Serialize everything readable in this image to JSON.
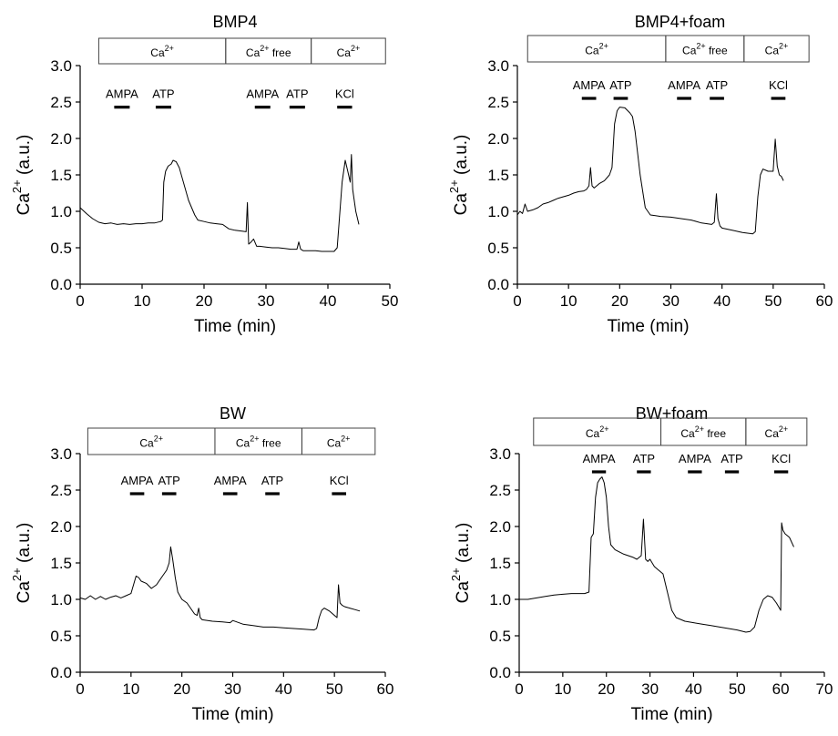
{
  "chart_data": [
    {
      "type": "line",
      "title": "BMP4",
      "xlabel": "Time (min)",
      "ylabel_main": "Ca",
      "ylabel_sup": "2+",
      "ylabel_tail": "(a.u.)",
      "xlim": [
        0,
        50
      ],
      "ylim": [
        0,
        3
      ],
      "xticks": [
        "0",
        "10",
        "20",
        "30",
        "40",
        "50"
      ],
      "yticks": [
        "0.0",
        "0.5",
        "1.0",
        "1.5",
        "2.0",
        "2.5",
        "3.0"
      ],
      "conditions": [
        {
          "main": "Ca",
          "sup": "2+",
          "tail": "",
          "x_start": 3,
          "x_end": 23.5
        },
        {
          "main": "Ca",
          "sup": "2+",
          "tail": " free",
          "x_start": 23.5,
          "x_end": 37.3
        },
        {
          "main": "Ca",
          "sup": "2+",
          "tail": "",
          "x_start": 37.3,
          "x_end": 49.3
        }
      ],
      "drugs": [
        {
          "label": "AMPA",
          "x_start": 5.5,
          "x_end": 8
        },
        {
          "label": "ATP",
          "x_start": 12.2,
          "x_end": 14.7
        },
        {
          "label": "AMPA",
          "x_start": 28.2,
          "x_end": 30.7
        },
        {
          "label": "ATP",
          "x_start": 33.8,
          "x_end": 36.3
        },
        {
          "label": "KCl",
          "x_start": 41.5,
          "x_end": 43.9
        }
      ],
      "drug_level": 2.43,
      "series": [
        {
          "name": "BMP4",
          "x": [
            0,
            1,
            2,
            3,
            4,
            5,
            6,
            7,
            8,
            9,
            10,
            11,
            12,
            13,
            13.3,
            13.5,
            13.8,
            14.2,
            14.7,
            15,
            15.5,
            16,
            16.5,
            17,
            17.5,
            18,
            18.5,
            19,
            20,
            21,
            22,
            23,
            24,
            25,
            26,
            26.8,
            27,
            27.2,
            27.5,
            28,
            28.5,
            29,
            30,
            31,
            32,
            33,
            34,
            35,
            35.3,
            35.6,
            36,
            37,
            38,
            39,
            40,
            41,
            41.5,
            41.9,
            42.3,
            42.8,
            43.2,
            43.6,
            43.8,
            44,
            44.5,
            45
          ],
          "values": [
            1.05,
            0.97,
            0.9,
            0.85,
            0.83,
            0.84,
            0.82,
            0.83,
            0.82,
            0.83,
            0.83,
            0.84,
            0.84,
            0.86,
            0.88,
            1.4,
            1.55,
            1.62,
            1.65,
            1.7,
            1.68,
            1.6,
            1.45,
            1.3,
            1.15,
            1.05,
            0.95,
            0.88,
            0.86,
            0.84,
            0.83,
            0.82,
            0.76,
            0.74,
            0.73,
            0.72,
            1.12,
            0.55,
            0.57,
            0.62,
            0.52,
            0.52,
            0.51,
            0.5,
            0.5,
            0.49,
            0.48,
            0.48,
            0.58,
            0.48,
            0.46,
            0.46,
            0.46,
            0.45,
            0.45,
            0.45,
            0.5,
            0.95,
            1.4,
            1.7,
            1.55,
            1.4,
            1.78,
            1.3,
            1.0,
            0.82
          ]
        }
      ]
    },
    {
      "type": "line",
      "title": "BMP4+foam",
      "xlabel": "Time (min)",
      "ylabel_main": "Ca",
      "ylabel_sup": "2+",
      "ylabel_tail": "(a.u.)",
      "xlim": [
        0,
        60
      ],
      "ylim": [
        0,
        3
      ],
      "xticks": [
        "0",
        "10",
        "20",
        "30",
        "40",
        "50",
        "60"
      ],
      "yticks": [
        "0.0",
        "0.5",
        "1.0",
        "1.5",
        "2.0",
        "2.5",
        "3.0"
      ],
      "conditions": [
        {
          "main": "Ca",
          "sup": "2+",
          "tail": "",
          "x_start": 2,
          "x_end": 29
        },
        {
          "main": "Ca",
          "sup": "2+",
          "tail": " free",
          "x_start": 29,
          "x_end": 44.3
        },
        {
          "main": "Ca",
          "sup": "2+",
          "tail": "",
          "x_start": 44.3,
          "x_end": 57
        }
      ],
      "drugs": [
        {
          "label": "AMPA",
          "x_start": 12.6,
          "x_end": 15.4
        },
        {
          "label": "ATP",
          "x_start": 18.8,
          "x_end": 21.6
        },
        {
          "label": "AMPA",
          "x_start": 31.2,
          "x_end": 34
        },
        {
          "label": "ATP",
          "x_start": 37.6,
          "x_end": 40.4
        },
        {
          "label": "KCl",
          "x_start": 49.6,
          "x_end": 52.4
        }
      ],
      "drug_level": 2.55,
      "series": [
        {
          "name": "BMP4+foam",
          "x": [
            0,
            0.5,
            1,
            1.5,
            2,
            3,
            4,
            5,
            6,
            7,
            8,
            9,
            10,
            11,
            12,
            13,
            13.5,
            14,
            14.3,
            14.6,
            15,
            16,
            17,
            18,
            18.5,
            19,
            19.5,
            20,
            21,
            22,
            22.5,
            23,
            24,
            25,
            26,
            27,
            28,
            30,
            32,
            34,
            36,
            38,
            38.5,
            38.9,
            39.2,
            39.6,
            40,
            42,
            44,
            46,
            46.5,
            47,
            47.5,
            48,
            49,
            50,
            50.4,
            50.8,
            51.2,
            51.6,
            52
          ],
          "values": [
            0.95,
            1.0,
            0.97,
            1.1,
            1.0,
            1.02,
            1.05,
            1.1,
            1.12,
            1.15,
            1.18,
            1.2,
            1.22,
            1.25,
            1.27,
            1.28,
            1.3,
            1.35,
            1.6,
            1.35,
            1.32,
            1.38,
            1.42,
            1.5,
            1.6,
            2.2,
            2.38,
            2.43,
            2.42,
            2.35,
            2.3,
            2.1,
            1.5,
            1.05,
            0.95,
            0.94,
            0.93,
            0.92,
            0.9,
            0.88,
            0.84,
            0.82,
            0.85,
            1.24,
            0.9,
            0.8,
            0.77,
            0.74,
            0.71,
            0.69,
            0.72,
            1.2,
            1.5,
            1.58,
            1.55,
            1.55,
            1.99,
            1.62,
            1.5,
            1.48,
            1.42
          ]
        }
      ]
    },
    {
      "type": "line",
      "title": "BW",
      "xlabel": "Time (min)",
      "ylabel_main": "Ca",
      "ylabel_sup": "2+",
      "ylabel_tail": "(a.u.)",
      "xlim": [
        0,
        60
      ],
      "ylim": [
        0,
        3
      ],
      "xticks": [
        "0",
        "10",
        "20",
        "30",
        "40",
        "50",
        "60"
      ],
      "yticks": [
        "0.0",
        "0.5",
        "1.0",
        "1.5",
        "2.0",
        "2.5",
        "3.0"
      ],
      "conditions": [
        {
          "main": "Ca",
          "sup": "2+",
          "tail": "",
          "x_start": 1.5,
          "x_end": 26.5
        },
        {
          "main": "Ca",
          "sup": "2+",
          "tail": " free",
          "x_start": 26.5,
          "x_end": 43.6
        },
        {
          "main": "Ca",
          "sup": "2+",
          "tail": "",
          "x_start": 43.6,
          "x_end": 58
        }
      ],
      "drugs": [
        {
          "label": "AMPA",
          "x_start": 9.8,
          "x_end": 12.6
        },
        {
          "label": "ATP",
          "x_start": 16.1,
          "x_end": 18.9
        },
        {
          "label": "AMPA",
          "x_start": 28.1,
          "x_end": 30.9
        },
        {
          "label": "ATP",
          "x_start": 36.4,
          "x_end": 39.2
        },
        {
          "label": "KCl",
          "x_start": 49.5,
          "x_end": 52.3
        }
      ],
      "drug_level": 2.45,
      "series": [
        {
          "name": "BW",
          "x": [
            0,
            1,
            2,
            3,
            4,
            5,
            6,
            7,
            8,
            9,
            10,
            10.5,
            11,
            11.5,
            12,
            13,
            14,
            15,
            16,
            17,
            17.5,
            17.8,
            18.2,
            18.7,
            19.2,
            20,
            21,
            22,
            22.5,
            23,
            23.3,
            23.6,
            24,
            26,
            28,
            29.5,
            30,
            32,
            34,
            36,
            38,
            40,
            42,
            44,
            46,
            46.5,
            47,
            47.5,
            48,
            49,
            50,
            50.5,
            50.8,
            51.1,
            51.5,
            52,
            53,
            54,
            55
          ],
          "values": [
            1.02,
            1.0,
            1.05,
            1.0,
            1.04,
            1.0,
            1.03,
            1.05,
            1.02,
            1.05,
            1.08,
            1.2,
            1.32,
            1.3,
            1.25,
            1.22,
            1.15,
            1.2,
            1.3,
            1.4,
            1.5,
            1.72,
            1.55,
            1.3,
            1.1,
            1.0,
            0.95,
            0.85,
            0.8,
            0.78,
            0.88,
            0.75,
            0.72,
            0.7,
            0.69,
            0.68,
            0.71,
            0.66,
            0.64,
            0.62,
            0.62,
            0.61,
            0.6,
            0.59,
            0.58,
            0.6,
            0.75,
            0.85,
            0.88,
            0.84,
            0.78,
            0.75,
            1.2,
            0.95,
            0.92,
            0.9,
            0.88,
            0.86,
            0.84
          ]
        }
      ]
    },
    {
      "type": "line",
      "title": "BW+foam",
      "xlabel": "Time (min)",
      "ylabel_main": "Ca",
      "ylabel_sup": "2+",
      "ylabel_tail": "(a.u.)",
      "xlim": [
        0,
        70
      ],
      "ylim": [
        0,
        3
      ],
      "xticks": [
        "0",
        "10",
        "20",
        "30",
        "40",
        "50",
        "60",
        "70"
      ],
      "yticks": [
        "0.0",
        "0.5",
        "1.0",
        "1.5",
        "2.0",
        "2.5",
        "3.0"
      ],
      "conditions": [
        {
          "main": "Ca",
          "sup": "2+",
          "tail": "",
          "x_start": 3.3,
          "x_end": 32.5
        },
        {
          "main": "Ca",
          "sup": "2+",
          "tail": " free",
          "x_start": 32.5,
          "x_end": 52
        },
        {
          "main": "Ca",
          "sup": "2+",
          "tail": "",
          "x_start": 52,
          "x_end": 66
        }
      ],
      "drugs": [
        {
          "label": "AMPA",
          "x_start": 16.7,
          "x_end": 19.9
        },
        {
          "label": "ATP",
          "x_start": 27,
          "x_end": 30.2
        },
        {
          "label": "AMPA",
          "x_start": 38.7,
          "x_end": 41.9
        },
        {
          "label": "ATP",
          "x_start": 47.2,
          "x_end": 50.4
        },
        {
          "label": "KCl",
          "x_start": 58.5,
          "x_end": 61.7
        }
      ],
      "drug_level": 2.75,
      "series": [
        {
          "name": "BW+foam",
          "x": [
            0,
            2,
            4,
            6,
            8,
            10,
            12,
            14,
            15,
            16,
            16.5,
            17,
            17.5,
            18,
            18.5,
            19,
            19.5,
            20,
            20.5,
            21,
            22,
            24,
            26,
            27,
            28,
            28.5,
            29,
            29.5,
            30,
            31,
            32,
            33,
            34,
            35,
            36,
            38,
            40,
            42,
            44,
            46,
            48,
            50,
            52,
            53,
            54,
            55,
            56,
            57,
            58,
            59,
            60,
            60.2,
            60.5,
            61,
            62,
            63
          ],
          "values": [
            1.0,
            1.0,
            1.02,
            1.04,
            1.06,
            1.07,
            1.08,
            1.08,
            1.08,
            1.1,
            1.85,
            1.9,
            2.4,
            2.6,
            2.65,
            2.68,
            2.6,
            2.4,
            2.0,
            1.75,
            1.68,
            1.62,
            1.58,
            1.55,
            1.6,
            2.1,
            1.55,
            1.52,
            1.55,
            1.45,
            1.4,
            1.35,
            1.1,
            0.85,
            0.75,
            0.7,
            0.68,
            0.66,
            0.64,
            0.62,
            0.6,
            0.58,
            0.55,
            0.56,
            0.62,
            0.85,
            1.0,
            1.05,
            1.03,
            0.95,
            0.85,
            2.05,
            1.95,
            1.9,
            1.85,
            1.72
          ]
        }
      ]
    }
  ]
}
